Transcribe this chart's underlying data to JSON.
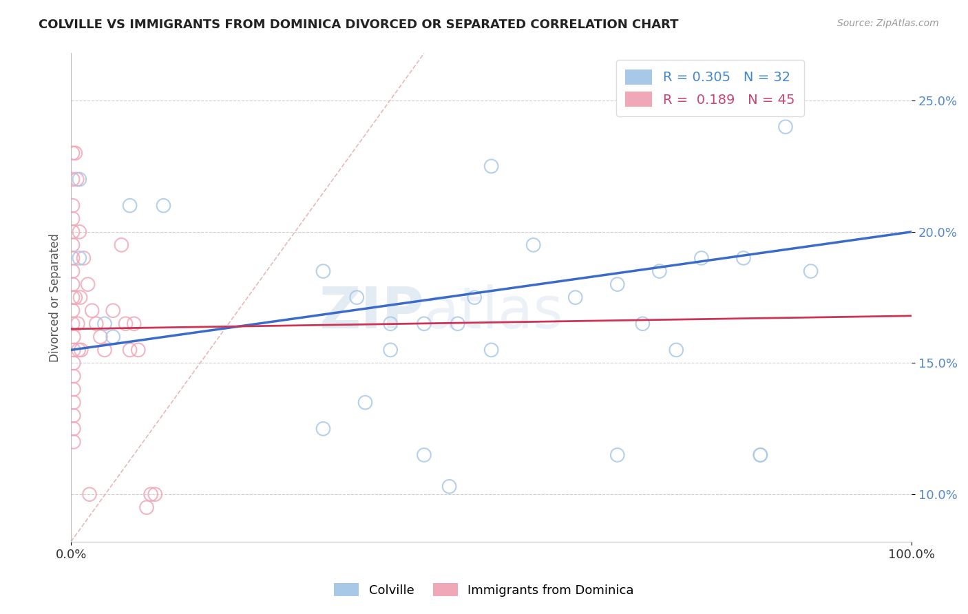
{
  "title": "COLVILLE VS IMMIGRANTS FROM DOMINICA DIVORCED OR SEPARATED CORRELATION CHART",
  "source": "Source: ZipAtlas.com",
  "ylabel": "Divorced or Separated",
  "xlim": [
    0.0,
    1.0
  ],
  "ylim": [
    0.082,
    0.268
  ],
  "yticks": [
    0.1,
    0.15,
    0.2,
    0.25
  ],
  "xticks": [
    0.0,
    1.0
  ],
  "xtick_labels": [
    "0.0%",
    "100.0%"
  ],
  "ytick_labels": [
    "10.0%",
    "15.0%",
    "20.0%",
    "25.0%"
  ],
  "legend_r1": "R = 0.305",
  "legend_n1": "N = 32",
  "legend_r2": "R =  0.189",
  "legend_n2": "N = 45",
  "blue_color": "#a8c8e8",
  "pink_color": "#f0a8b8",
  "trend_blue": "#3a6bc9",
  "trend_pink": "#cc3355",
  "ref_line_color": "#e8b8b8",
  "grid_color": "#d0d0d0",
  "watermark_zip": "ZIP",
  "watermark_atlas": "atlas",
  "blue_x": [
    0.01,
    0.07,
    0.11,
    0.01,
    0.04,
    0.05,
    0.3,
    0.34,
    0.42,
    0.46,
    0.5,
    0.55,
    0.6,
    0.65,
    0.68,
    0.7,
    0.72,
    0.75,
    0.8,
    0.82,
    0.85,
    0.88,
    0.42,
    0.48,
    0.38,
    0.35,
    0.3,
    0.45,
    0.65,
    0.82,
    0.5,
    0.38
  ],
  "blue_y": [
    0.22,
    0.21,
    0.21,
    0.19,
    0.165,
    0.16,
    0.185,
    0.175,
    0.165,
    0.165,
    0.225,
    0.195,
    0.175,
    0.18,
    0.165,
    0.185,
    0.155,
    0.19,
    0.19,
    0.115,
    0.24,
    0.185,
    0.115,
    0.175,
    0.155,
    0.135,
    0.125,
    0.103,
    0.115,
    0.115,
    0.155,
    0.165
  ],
  "pink_x": [
    0.002,
    0.002,
    0.002,
    0.002,
    0.002,
    0.002,
    0.002,
    0.002,
    0.002,
    0.002,
    0.002,
    0.002,
    0.003,
    0.003,
    0.003,
    0.003,
    0.003,
    0.003,
    0.003,
    0.003,
    0.003,
    0.005,
    0.005,
    0.007,
    0.008,
    0.009,
    0.01,
    0.011,
    0.012,
    0.015,
    0.02,
    0.022,
    0.025,
    0.03,
    0.035,
    0.04,
    0.05,
    0.06,
    0.065,
    0.07,
    0.075,
    0.08,
    0.09,
    0.095,
    0.1
  ],
  "pink_y": [
    0.23,
    0.22,
    0.21,
    0.205,
    0.2,
    0.195,
    0.19,
    0.185,
    0.18,
    0.175,
    0.17,
    0.165,
    0.16,
    0.155,
    0.15,
    0.145,
    0.14,
    0.135,
    0.13,
    0.125,
    0.12,
    0.23,
    0.175,
    0.22,
    0.165,
    0.155,
    0.2,
    0.175,
    0.155,
    0.19,
    0.18,
    0.1,
    0.17,
    0.165,
    0.16,
    0.155,
    0.17,
    0.195,
    0.165,
    0.155,
    0.165,
    0.155,
    0.095,
    0.1,
    0.1
  ],
  "blue_trend_start": 0.155,
  "blue_trend_end": 0.2,
  "pink_trend_start": 0.163,
  "pink_trend_end": 0.168
}
